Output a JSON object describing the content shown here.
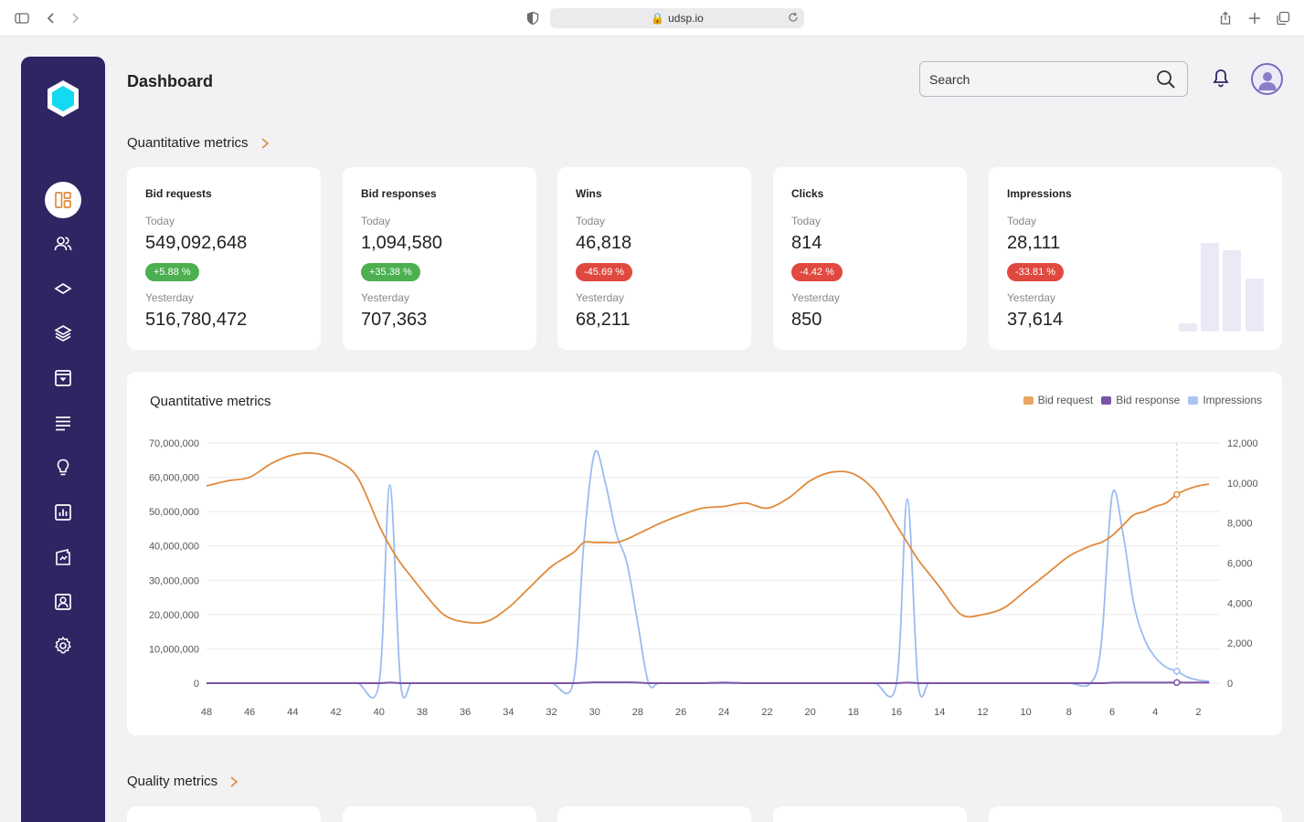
{
  "browser": {
    "url": "udsp.io"
  },
  "header": {
    "title": "Dashboard",
    "search_placeholder": "Search"
  },
  "sections": {
    "quantitative": "Quantitative metrics",
    "quality": "Quality metrics"
  },
  "cards": [
    {
      "title": "Bid requests",
      "today_label": "Today",
      "today_value": "549,092,648",
      "change": "+5.88 %",
      "trend": "up",
      "yesterday_label": "Yesterday",
      "yesterday_value": "516,780,472"
    },
    {
      "title": "Bid responses",
      "today_label": "Today",
      "today_value": "1,094,580",
      "change": "+35.38 %",
      "trend": "up",
      "yesterday_label": "Yesterday",
      "yesterday_value": "707,363"
    },
    {
      "title": "Wins",
      "today_label": "Today",
      "today_value": "46,818",
      "change": "-45.69 %",
      "trend": "down",
      "yesterday_label": "Yesterday",
      "yesterday_value": "68,211"
    },
    {
      "title": "Clicks",
      "today_label": "Today",
      "today_value": "814",
      "change": "-4.42 %",
      "trend": "down",
      "yesterday_label": "Yesterday",
      "yesterday_value": "850"
    },
    {
      "title": "Impressions",
      "today_label": "Today",
      "today_value": "28,111",
      "change": "-33.81 %",
      "trend": "down",
      "yesterday_label": "Yesterday",
      "yesterday_value": "37,614"
    }
  ],
  "colors": {
    "sidebar": "#2f2563",
    "accent": "#e08a3c",
    "up": "#4caf50",
    "down": "#e0493f"
  },
  "sidebar_icons": [
    "dashboard-icon",
    "users-icon",
    "diamond-icon",
    "layers-icon",
    "dropdown-box-icon",
    "list-icon",
    "lightbulb-icon",
    "bar-chart-icon",
    "report-icon",
    "contact-icon",
    "settings-icon"
  ],
  "chart_data": {
    "type": "line",
    "title": "Quantitative metrics",
    "x": [
      48,
      47,
      46,
      45,
      44,
      43,
      42,
      41,
      40,
      39.5,
      39,
      38.5,
      38,
      37,
      36,
      35,
      34,
      33,
      32,
      31,
      30.5,
      30,
      29.5,
      29,
      28.5,
      28,
      27.5,
      27,
      26,
      25,
      24,
      23,
      22,
      21,
      20,
      19,
      18,
      17,
      16,
      15.5,
      15,
      14.5,
      14,
      13,
      12,
      11,
      10,
      9,
      8,
      7,
      6.5,
      6,
      5.5,
      5,
      4.5,
      4,
      3.5,
      3,
      2.5,
      2,
      1.5
    ],
    "x_ticks": [
      "48",
      "46",
      "44",
      "42",
      "40",
      "38",
      "36",
      "34",
      "32",
      "30",
      "28",
      "26",
      "24",
      "22",
      "20",
      "18",
      "16",
      "14",
      "12",
      "10",
      "8",
      "6",
      "4",
      "2"
    ],
    "y_left_ticks": [
      "70,000,000",
      "60,000,000",
      "50,000,000",
      "40,000,000",
      "30,000,000",
      "20,000,000",
      "10,000,000",
      "0"
    ],
    "y_right_ticks": [
      "12,000",
      "10,000",
      "8,000",
      "6,000",
      "4,000",
      "2,000",
      "0"
    ],
    "ylim_left": [
      0,
      70000000
    ],
    "ylim_right": [
      0,
      12000
    ],
    "series": [
      {
        "name": "Bid request",
        "axis": "left",
        "color": "#e08a3c",
        "values": [
          57500000,
          59000000,
          60000000,
          64000000,
          66500000,
          67000000,
          65000000,
          60000000,
          46000000,
          40000000,
          35000000,
          31000000,
          27000000,
          20000000,
          17800000,
          18000000,
          22000000,
          28000000,
          34000000,
          38000000,
          41000000,
          41000000,
          41000000,
          41000000,
          42000000,
          43500000,
          45000000,
          46500000,
          49000000,
          51000000,
          51500000,
          52500000,
          51000000,
          54000000,
          59000000,
          61500000,
          61000000,
          56000000,
          46000000,
          41000000,
          36000000,
          32000000,
          28000000,
          20000000,
          20000000,
          22000000,
          27000000,
          32000000,
          37000000,
          40000000,
          41000000,
          43000000,
          46000000,
          49000000,
          50000000,
          51500000,
          52500000,
          55000000,
          56500000,
          57500000,
          58000000
        ]
      },
      {
        "name": "Bid response",
        "axis": "right",
        "color": "#7b54a8",
        "values": [
          0,
          0,
          0,
          0,
          0,
          0,
          0,
          0,
          0,
          30,
          0,
          0,
          0,
          0,
          0,
          0,
          0,
          0,
          0,
          0,
          20,
          40,
          40,
          40,
          40,
          30,
          0,
          0,
          0,
          0,
          30,
          0,
          0,
          0,
          0,
          0,
          0,
          0,
          0,
          30,
          0,
          0,
          0,
          0,
          0,
          0,
          0,
          0,
          0,
          0,
          0,
          20,
          30,
          30,
          30,
          30,
          30,
          30,
          30,
          30,
          30
        ]
      },
      {
        "name": "Impressions",
        "axis": "right",
        "color": "#9bbcf0",
        "values": [
          0,
          0,
          0,
          0,
          0,
          0,
          0,
          0,
          0,
          9900,
          0,
          0,
          0,
          0,
          0,
          0,
          0,
          0,
          0,
          0,
          7000,
          11500,
          10000,
          7500,
          6000,
          3000,
          0,
          0,
          0,
          0,
          0,
          0,
          0,
          0,
          0,
          0,
          0,
          0,
          0,
          9200,
          0,
          0,
          0,
          0,
          0,
          0,
          0,
          0,
          0,
          0,
          2000,
          9400,
          7500,
          4000,
          2200,
          1300,
          800,
          600,
          300,
          150,
          100
        ]
      }
    ],
    "legend_position": "top-right",
    "grid": true
  }
}
